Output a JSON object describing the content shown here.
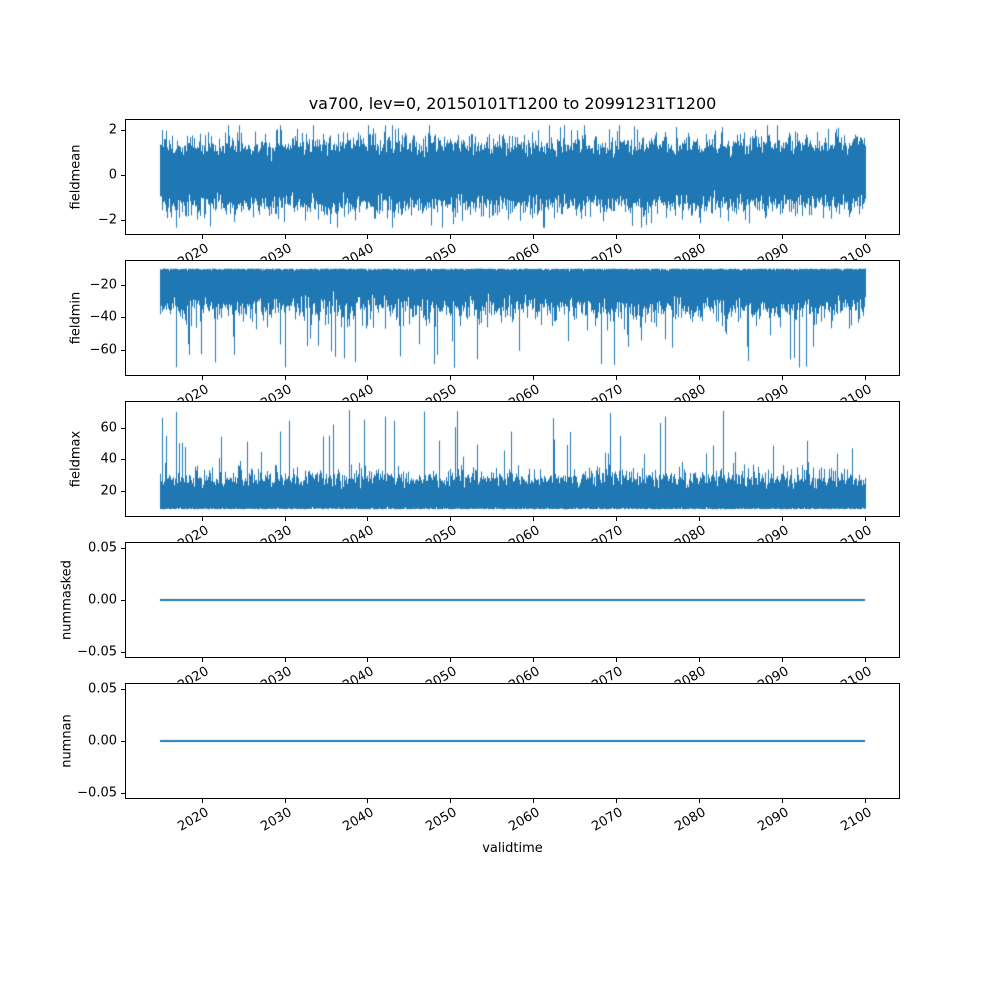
{
  "figure": {
    "background_color": "#ffffff",
    "line_color": "#1f77b4",
    "axis_color": "#000000"
  },
  "chart_data": {
    "type": "line",
    "title": "va700, lev=0, 20150101T1200 to 20991231T1200",
    "xlabel": "validtime",
    "legend": "none",
    "grid": false,
    "x_axis": {
      "label": "validtime",
      "xlim": [
        2010.75,
        2104.25
      ],
      "data_x_range": [
        2015.0,
        2100.0
      ],
      "tick_values": [
        2020,
        2030,
        2040,
        2050,
        2060,
        2070,
        2080,
        2090,
        2100
      ],
      "tick_labels": [
        "2020",
        "2030",
        "2040",
        "2050",
        "2060",
        "2070",
        "2080",
        "2090",
        "2100"
      ],
      "tick_rotation_deg": 30
    },
    "samples_per_column": 44,
    "subplots": [
      {
        "ylabel": "fieldmean",
        "ylim": [
          -2.69,
          2.49
        ],
        "yticks": [
          {
            "v": 2,
            "label": "2"
          },
          {
            "v": 0,
            "label": "0"
          },
          {
            "v": -2,
            "label": "−2"
          }
        ],
        "series": {
          "name": "fieldmean",
          "kind": "noise-normal",
          "seed": 101,
          "center": 0,
          "sigma": 0.65,
          "clip": [
            -2.4,
            2.25
          ],
          "spike_prob": 0,
          "spike_range": [
            0,
            0
          ],
          "approx_band": [
            -1.6,
            1.6
          ],
          "approx_extremes": [
            -2.4,
            2.25
          ]
        }
      },
      {
        "ylabel": "fieldmin",
        "ylim": [
          -76.25,
          -4.75
        ],
        "yticks": [
          {
            "v": -20,
            "label": "−20"
          },
          {
            "v": -40,
            "label": "−40"
          },
          {
            "v": -60,
            "label": "−60"
          }
        ],
        "series": {
          "name": "fieldmin",
          "kind": "noise-half-negative",
          "seed": 202,
          "center": -9.5,
          "sigma": 10.5,
          "clip": [
            -73,
            -8.2
          ],
          "spike_prob": 0.0013,
          "spike_range": [
            -72,
            -45
          ],
          "approx_band": [
            -40,
            -9
          ],
          "approx_extremes": [
            -73,
            -8
          ]
        }
      },
      {
        "ylabel": "fieldmax",
        "ylim": [
          3.7,
          76.8
        ],
        "yticks": [
          {
            "v": 60,
            "label": "60"
          },
          {
            "v": 40,
            "label": "40"
          },
          {
            "v": 20,
            "label": "20"
          }
        ],
        "series": {
          "name": "fieldmax",
          "kind": "noise-half-positive",
          "seed": 303,
          "center": 8,
          "sigma": 8.5,
          "clip": [
            7.2,
            73.5
          ],
          "spike_prob": 0.0015,
          "spike_range": [
            40,
            73.5
          ],
          "approx_band": [
            8,
            33
          ],
          "approx_extremes": [
            7,
            73.5
          ]
        }
      },
      {
        "ylabel": "nummasked",
        "ylim": [
          -0.0555,
          0.0555
        ],
        "yticks": [
          {
            "v": 0.05,
            "label": "0.05"
          },
          {
            "v": 0,
            "label": "0.00"
          },
          {
            "v": -0.05,
            "label": "−0.05"
          }
        ],
        "series": {
          "name": "nummasked",
          "kind": "constant",
          "value": 0.0
        }
      },
      {
        "ylabel": "numnan",
        "ylim": [
          -0.0555,
          0.0555
        ],
        "yticks": [
          {
            "v": 0.05,
            "label": "0.05"
          },
          {
            "v": 0,
            "label": "0.00"
          },
          {
            "v": -0.05,
            "label": "−0.05"
          }
        ],
        "series": {
          "name": "numnan",
          "kind": "constant",
          "value": 0.0
        }
      }
    ]
  }
}
